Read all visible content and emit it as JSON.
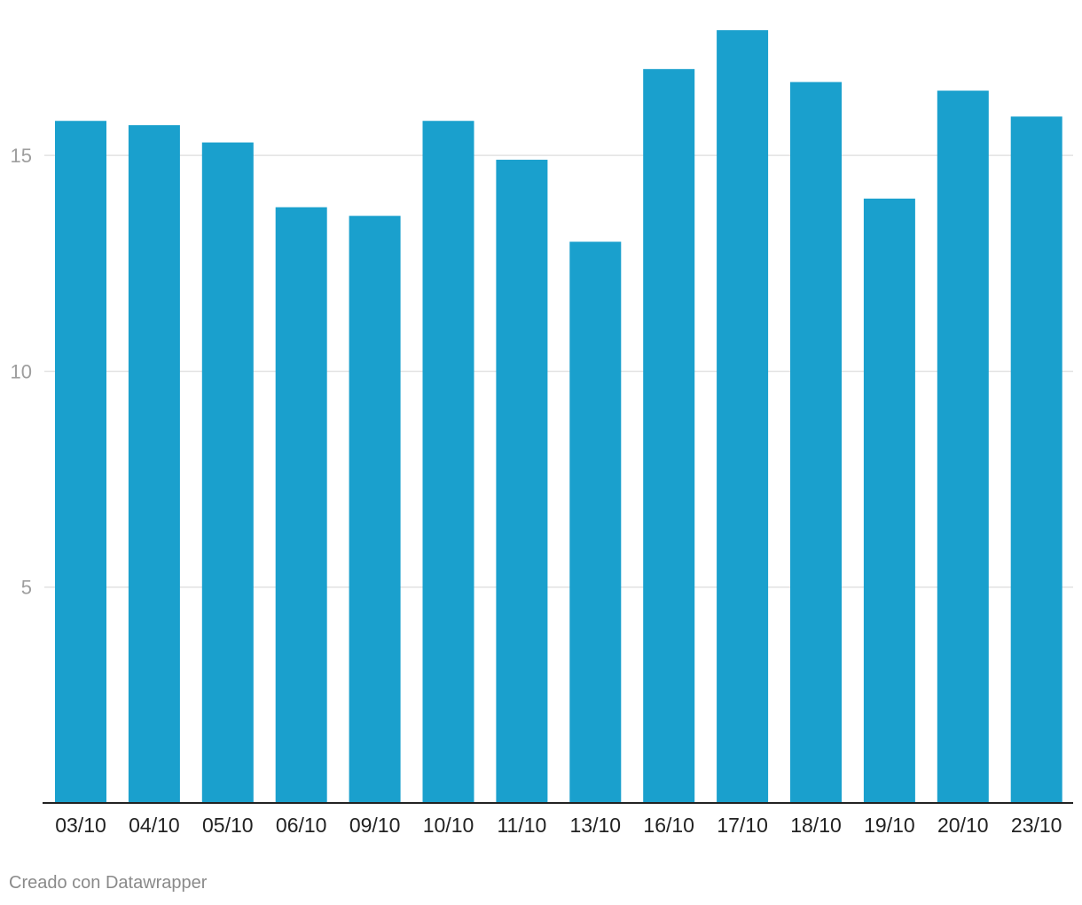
{
  "chart_data": {
    "type": "bar",
    "categories": [
      "03/10",
      "04/10",
      "05/10",
      "06/10",
      "09/10",
      "10/10",
      "11/10",
      "13/10",
      "16/10",
      "17/10",
      "18/10",
      "19/10",
      "20/10",
      "23/10"
    ],
    "values": [
      15.8,
      15.7,
      15.3,
      13.8,
      13.6,
      15.8,
      14.9,
      13.0,
      17.0,
      17.9,
      16.7,
      14.0,
      16.5,
      15.9
    ],
    "ylim": [
      0,
      18.6
    ],
    "yticks": [
      5,
      10,
      15
    ],
    "grid": true,
    "bar_color": "#1aa0cd",
    "title": "",
    "xlabel": "",
    "ylabel": ""
  },
  "footer": {
    "credit": "Creado con Datawrapper"
  }
}
